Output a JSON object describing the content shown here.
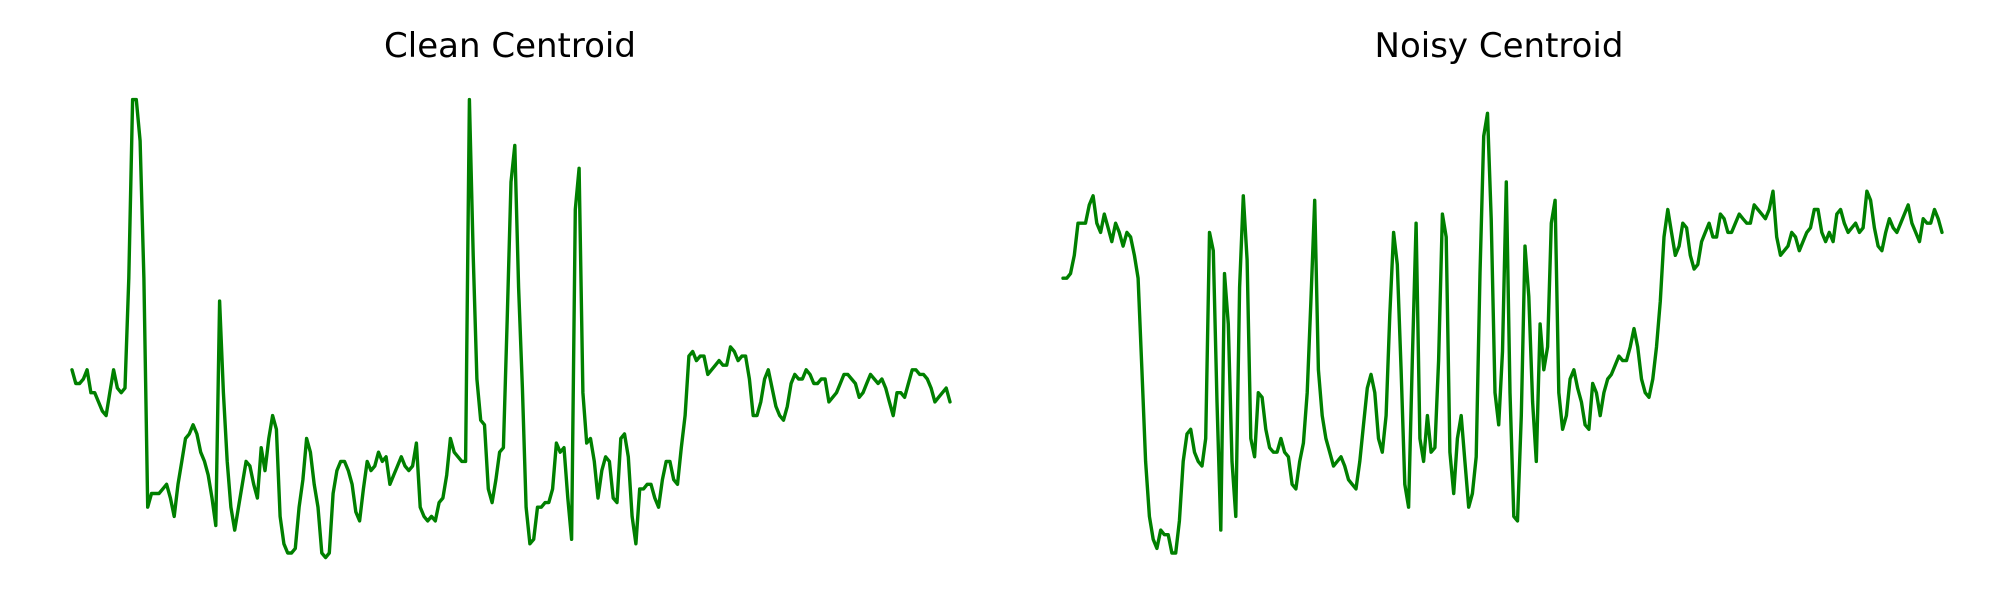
{
  "colors": {
    "line": "#008000",
    "background": "#ffffff"
  },
  "chart_data": [
    {
      "type": "line",
      "title": "Clean Centroid",
      "xlabel": "",
      "ylabel": "",
      "axes": "off",
      "grid": false,
      "ylim": [
        0,
        1
      ],
      "series": [
        {
          "color": "#008000",
          "values": [
            0.4,
            0.37,
            0.37,
            0.38,
            0.4,
            0.35,
            0.35,
            0.33,
            0.31,
            0.3,
            0.35,
            0.4,
            0.36,
            0.35,
            0.36,
            0.6,
            0.99,
            0.99,
            0.9,
            0.6,
            0.1,
            0.13,
            0.13,
            0.13,
            0.14,
            0.15,
            0.12,
            0.08,
            0.15,
            0.2,
            0.25,
            0.26,
            0.28,
            0.26,
            0.22,
            0.2,
            0.17,
            0.12,
            0.06,
            0.55,
            0.35,
            0.2,
            0.1,
            0.05,
            0.1,
            0.15,
            0.2,
            0.19,
            0.15,
            0.12,
            0.23,
            0.18,
            0.25,
            0.3,
            0.27,
            0.08,
            0.02,
            0.0,
            0.0,
            0.01,
            0.1,
            0.16,
            0.25,
            0.22,
            0.15,
            0.1,
            0.0,
            -0.01,
            0.0,
            0.13,
            0.18,
            0.2,
            0.2,
            0.18,
            0.15,
            0.09,
            0.07,
            0.14,
            0.2,
            0.18,
            0.19,
            0.22,
            0.2,
            0.21,
            0.15,
            0.17,
            0.19,
            0.21,
            0.19,
            0.18,
            0.19,
            0.24,
            0.1,
            0.08,
            0.07,
            0.08,
            0.07,
            0.11,
            0.12,
            0.17,
            0.25,
            0.22,
            0.21,
            0.2,
            0.2,
            0.99,
            0.65,
            0.38,
            0.29,
            0.28,
            0.14,
            0.11,
            0.16,
            0.22,
            0.23,
            0.51,
            0.81,
            0.89,
            0.58,
            0.36,
            0.1,
            0.02,
            0.03,
            0.1,
            0.1,
            0.11,
            0.11,
            0.14,
            0.24,
            0.22,
            0.23,
            0.12,
            0.03,
            0.75,
            0.84,
            0.35,
            0.24,
            0.25,
            0.2,
            0.12,
            0.18,
            0.21,
            0.2,
            0.12,
            0.11,
            0.25,
            0.26,
            0.21,
            0.08,
            0.02,
            0.14,
            0.14,
            0.15,
            0.15,
            0.12,
            0.1,
            0.16,
            0.2,
            0.2,
            0.16,
            0.15,
            0.23,
            0.3,
            0.43,
            0.44,
            0.42,
            0.43,
            0.43,
            0.39,
            0.4,
            0.41,
            0.42,
            0.41,
            0.41,
            0.45,
            0.44,
            0.42,
            0.43,
            0.43,
            0.38,
            0.3,
            0.3,
            0.33,
            0.38,
            0.4,
            0.36,
            0.32,
            0.3,
            0.29,
            0.32,
            0.37,
            0.39,
            0.38,
            0.38,
            0.4,
            0.39,
            0.37,
            0.37,
            0.38,
            0.38,
            0.33,
            0.34,
            0.35,
            0.37,
            0.39,
            0.39,
            0.38,
            0.37,
            0.34,
            0.35,
            0.37,
            0.39,
            0.38,
            0.37,
            0.38,
            0.36,
            0.33,
            0.3,
            0.35,
            0.35,
            0.34,
            0.37,
            0.4,
            0.4,
            0.39,
            0.39,
            0.38,
            0.36,
            0.33,
            0.34,
            0.35,
            0.36,
            0.33
          ]
        }
      ]
    },
    {
      "type": "line",
      "title": "Noisy Centroid",
      "xlabel": "",
      "ylabel": "",
      "axes": "off",
      "grid": false,
      "ylim": [
        0,
        1
      ],
      "series": [
        {
          "color": "#008000",
          "values": [
            0.6,
            0.6,
            0.61,
            0.65,
            0.72,
            0.72,
            0.72,
            0.76,
            0.78,
            0.72,
            0.7,
            0.74,
            0.71,
            0.68,
            0.72,
            0.7,
            0.67,
            0.7,
            0.69,
            0.65,
            0.6,
            0.4,
            0.2,
            0.08,
            0.03,
            0.01,
            0.05,
            0.04,
            0.04,
            0.0,
            0.0,
            0.07,
            0.2,
            0.26,
            0.27,
            0.22,
            0.2,
            0.19,
            0.25,
            0.7,
            0.66,
            0.33,
            0.05,
            0.61,
            0.5,
            0.2,
            0.08,
            0.58,
            0.78,
            0.64,
            0.25,
            0.21,
            0.35,
            0.34,
            0.27,
            0.23,
            0.22,
            0.22,
            0.25,
            0.22,
            0.21,
            0.15,
            0.14,
            0.2,
            0.24,
            0.35,
            0.55,
            0.77,
            0.4,
            0.3,
            0.25,
            0.22,
            0.19,
            0.2,
            0.21,
            0.19,
            0.16,
            0.15,
            0.14,
            0.2,
            0.28,
            0.36,
            0.39,
            0.35,
            0.25,
            0.22,
            0.3,
            0.52,
            0.7,
            0.63,
            0.4,
            0.15,
            0.1,
            0.42,
            0.72,
            0.25,
            0.2,
            0.3,
            0.22,
            0.23,
            0.42,
            0.74,
            0.69,
            0.22,
            0.13,
            0.25,
            0.3,
            0.2,
            0.1,
            0.13,
            0.21,
            0.61,
            0.91,
            0.96,
            0.73,
            0.35,
            0.28,
            0.44,
            0.81,
            0.35,
            0.08,
            0.07,
            0.3,
            0.67,
            0.56,
            0.33,
            0.2,
            0.5,
            0.4,
            0.45,
            0.72,
            0.77,
            0.35,
            0.27,
            0.3,
            0.38,
            0.4,
            0.36,
            0.33,
            0.28,
            0.27,
            0.37,
            0.35,
            0.3,
            0.35,
            0.38,
            0.39,
            0.41,
            0.43,
            0.42,
            0.42,
            0.45,
            0.49,
            0.45,
            0.38,
            0.35,
            0.34,
            0.38,
            0.45,
            0.55,
            0.69,
            0.75,
            0.7,
            0.65,
            0.67,
            0.72,
            0.71,
            0.65,
            0.62,
            0.63,
            0.68,
            0.7,
            0.72,
            0.69,
            0.69,
            0.74,
            0.73,
            0.7,
            0.7,
            0.72,
            0.74,
            0.73,
            0.72,
            0.72,
            0.76,
            0.75,
            0.74,
            0.73,
            0.75,
            0.79,
            0.69,
            0.65,
            0.66,
            0.67,
            0.7,
            0.69,
            0.66,
            0.68,
            0.7,
            0.71,
            0.75,
            0.75,
            0.7,
            0.68,
            0.7,
            0.68,
            0.74,
            0.75,
            0.72,
            0.7,
            0.71,
            0.72,
            0.7,
            0.71,
            0.79,
            0.77,
            0.71,
            0.67,
            0.66,
            0.7,
            0.73,
            0.71,
            0.7,
            0.72,
            0.74,
            0.76,
            0.72,
            0.7,
            0.68,
            0.73,
            0.72,
            0.72,
            0.75,
            0.73,
            0.7
          ]
        }
      ]
    }
  ]
}
